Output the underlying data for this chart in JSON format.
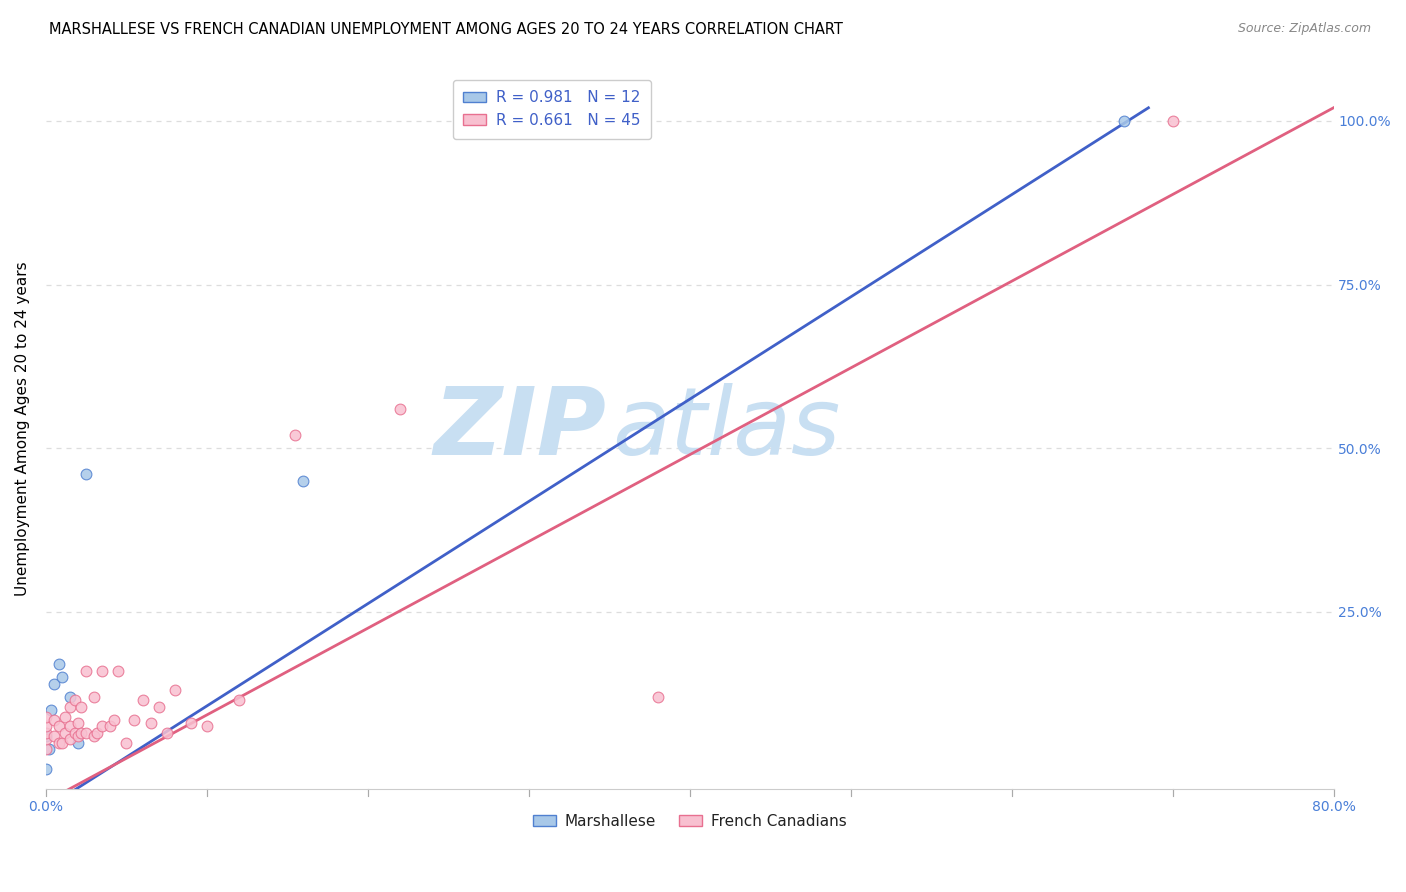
{
  "title": "MARSHALLESE VS FRENCH CANADIAN UNEMPLOYMENT AMONG AGES 20 TO 24 YEARS CORRELATION CHART",
  "source": "Source: ZipAtlas.com",
  "ylabel": "Unemployment Among Ages 20 to 24 years",
  "xlim": [
    0.0,
    0.8
  ],
  "ylim": [
    -0.02,
    1.08
  ],
  "ytick_positions": [
    0.25,
    0.5,
    0.75,
    1.0
  ],
  "ytick_labels": [
    "25.0%",
    "50.0%",
    "75.0%",
    "100.0%"
  ],
  "grid_color": "#dddddd",
  "background_color": "#ffffff",
  "watermark_zip": "ZIP",
  "watermark_atlas": "atlas",
  "watermark_color": "#c8dff2",
  "marshallese_color": "#a8c8e8",
  "french_color": "#f8c0d0",
  "marshallese_edge_color": "#5080d0",
  "french_edge_color": "#e87090",
  "marshallese_line_color": "#4060c8",
  "french_line_color": "#e06080",
  "legend_r_marshallese": "R = 0.981",
  "legend_n_marshallese": "N = 12",
  "legend_r_french": "R = 0.661",
  "legend_n_french": "N = 45",
  "blue_line_x": [
    0.0,
    0.685
  ],
  "blue_line_y": [
    -0.05,
    1.02
  ],
  "pink_line_x": [
    0.0,
    0.8
  ],
  "pink_line_y": [
    -0.04,
    1.02
  ],
  "marshallese_x": [
    0.0,
    0.0,
    0.002,
    0.003,
    0.005,
    0.008,
    0.01,
    0.015,
    0.02,
    0.025,
    0.16,
    0.67
  ],
  "marshallese_y": [
    0.01,
    0.06,
    0.04,
    0.1,
    0.14,
    0.17,
    0.15,
    0.12,
    0.05,
    0.46,
    0.45,
    1.0
  ],
  "french_x": [
    0.0,
    0.0,
    0.0,
    0.0,
    0.0,
    0.005,
    0.005,
    0.008,
    0.008,
    0.01,
    0.012,
    0.012,
    0.015,
    0.015,
    0.015,
    0.018,
    0.018,
    0.02,
    0.02,
    0.022,
    0.022,
    0.025,
    0.025,
    0.03,
    0.03,
    0.032,
    0.035,
    0.035,
    0.04,
    0.042,
    0.045,
    0.05,
    0.055,
    0.06,
    0.065,
    0.07,
    0.075,
    0.08,
    0.09,
    0.1,
    0.12,
    0.155,
    0.22,
    0.38,
    0.7
  ],
  "french_y": [
    0.04,
    0.055,
    0.065,
    0.075,
    0.09,
    0.06,
    0.085,
    0.05,
    0.075,
    0.05,
    0.065,
    0.09,
    0.055,
    0.075,
    0.105,
    0.065,
    0.115,
    0.06,
    0.08,
    0.065,
    0.105,
    0.065,
    0.16,
    0.06,
    0.12,
    0.065,
    0.075,
    0.16,
    0.075,
    0.085,
    0.16,
    0.05,
    0.085,
    0.115,
    0.08,
    0.105,
    0.065,
    0.13,
    0.08,
    0.075,
    0.115,
    0.52,
    0.56,
    0.12,
    1.0
  ],
  "title_fontsize": 10.5,
  "source_fontsize": 9,
  "tick_fontsize": 10,
  "ylabel_fontsize": 11,
  "legend_fontsize": 11,
  "marker_size": 60
}
